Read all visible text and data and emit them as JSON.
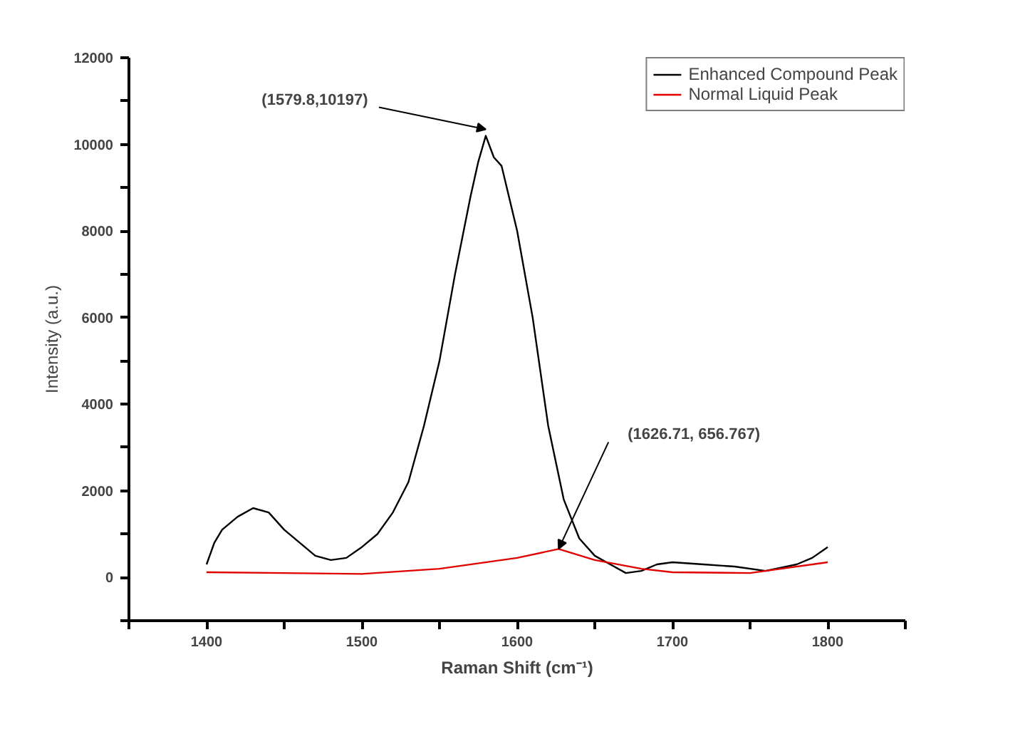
{
  "chart_data": {
    "type": "line",
    "xlabel": "Raman Shift (cm⁻¹)",
    "ylabel": "Intensity (a.u.)",
    "xlim": [
      1350,
      1850
    ],
    "ylim": [
      -1000,
      12000
    ],
    "xticks": [
      {
        "value": 1350,
        "label": null
      },
      1400,
      {
        "value": 1450,
        "label": null
      },
      1500,
      {
        "value": 1550,
        "label": null
      },
      1600,
      {
        "value": 1650,
        "label": null
      },
      1700,
      {
        "value": 1750,
        "label": null
      },
      1800,
      {
        "value": 1850,
        "label": null
      }
    ],
    "yticks": [
      {
        "value": -1000,
        "label": null
      },
      0,
      {
        "value": 1000,
        "label": null
      },
      2000,
      {
        "value": 3000,
        "label": null
      },
      4000,
      {
        "value": 5000,
        "label": null
      },
      6000,
      {
        "value": 7000,
        "label": null
      },
      8000,
      {
        "value": 9000,
        "label": null
      },
      10000,
      {
        "value": 11000,
        "label": null
      },
      12000
    ],
    "grid": false,
    "legend": "top right",
    "line_style": "solid",
    "marker": "none",
    "series": [
      {
        "name": "Enhanced Compound Peak",
        "color": "#000000",
        "x": [
          1400,
          1405,
          1410,
          1420,
          1430,
          1440,
          1450,
          1460,
          1470,
          1480,
          1490,
          1500,
          1510,
          1520,
          1530,
          1540,
          1550,
          1560,
          1570,
          1575,
          1579.8,
          1585,
          1590,
          1600,
          1610,
          1620,
          1630,
          1640,
          1650,
          1660,
          1670,
          1680,
          1690,
          1700,
          1720,
          1740,
          1760,
          1780,
          1790,
          1800
        ],
        "values": [
          300,
          800,
          1100,
          1400,
          1600,
          1500,
          1100,
          800,
          500,
          400,
          450,
          700,
          1000,
          1500,
          2200,
          3500,
          5000,
          7000,
          8800,
          9600,
          10197,
          9700,
          9500,
          8000,
          6000,
          3500,
          1800,
          900,
          500,
          300,
          100,
          150,
          300,
          350,
          300,
          250,
          150,
          300,
          450,
          700
        ]
      },
      {
        "name": "Normal Liquid Peak",
        "color": "#e00000",
        "x": [
          1400,
          1450,
          1500,
          1550,
          1600,
          1626.71,
          1650,
          1680,
          1700,
          1750,
          1800
        ],
        "values": [
          120,
          100,
          80,
          200,
          450,
          656.767,
          400,
          200,
          120,
          100,
          350
        ]
      }
    ],
    "annotations": [
      {
        "text": "(1579.8,10197)",
        "x": 1579.8,
        "y": 10197
      },
      {
        "text": "(1626.71, 656.767)",
        "x": 1626.71,
        "y": 656.767
      }
    ]
  }
}
